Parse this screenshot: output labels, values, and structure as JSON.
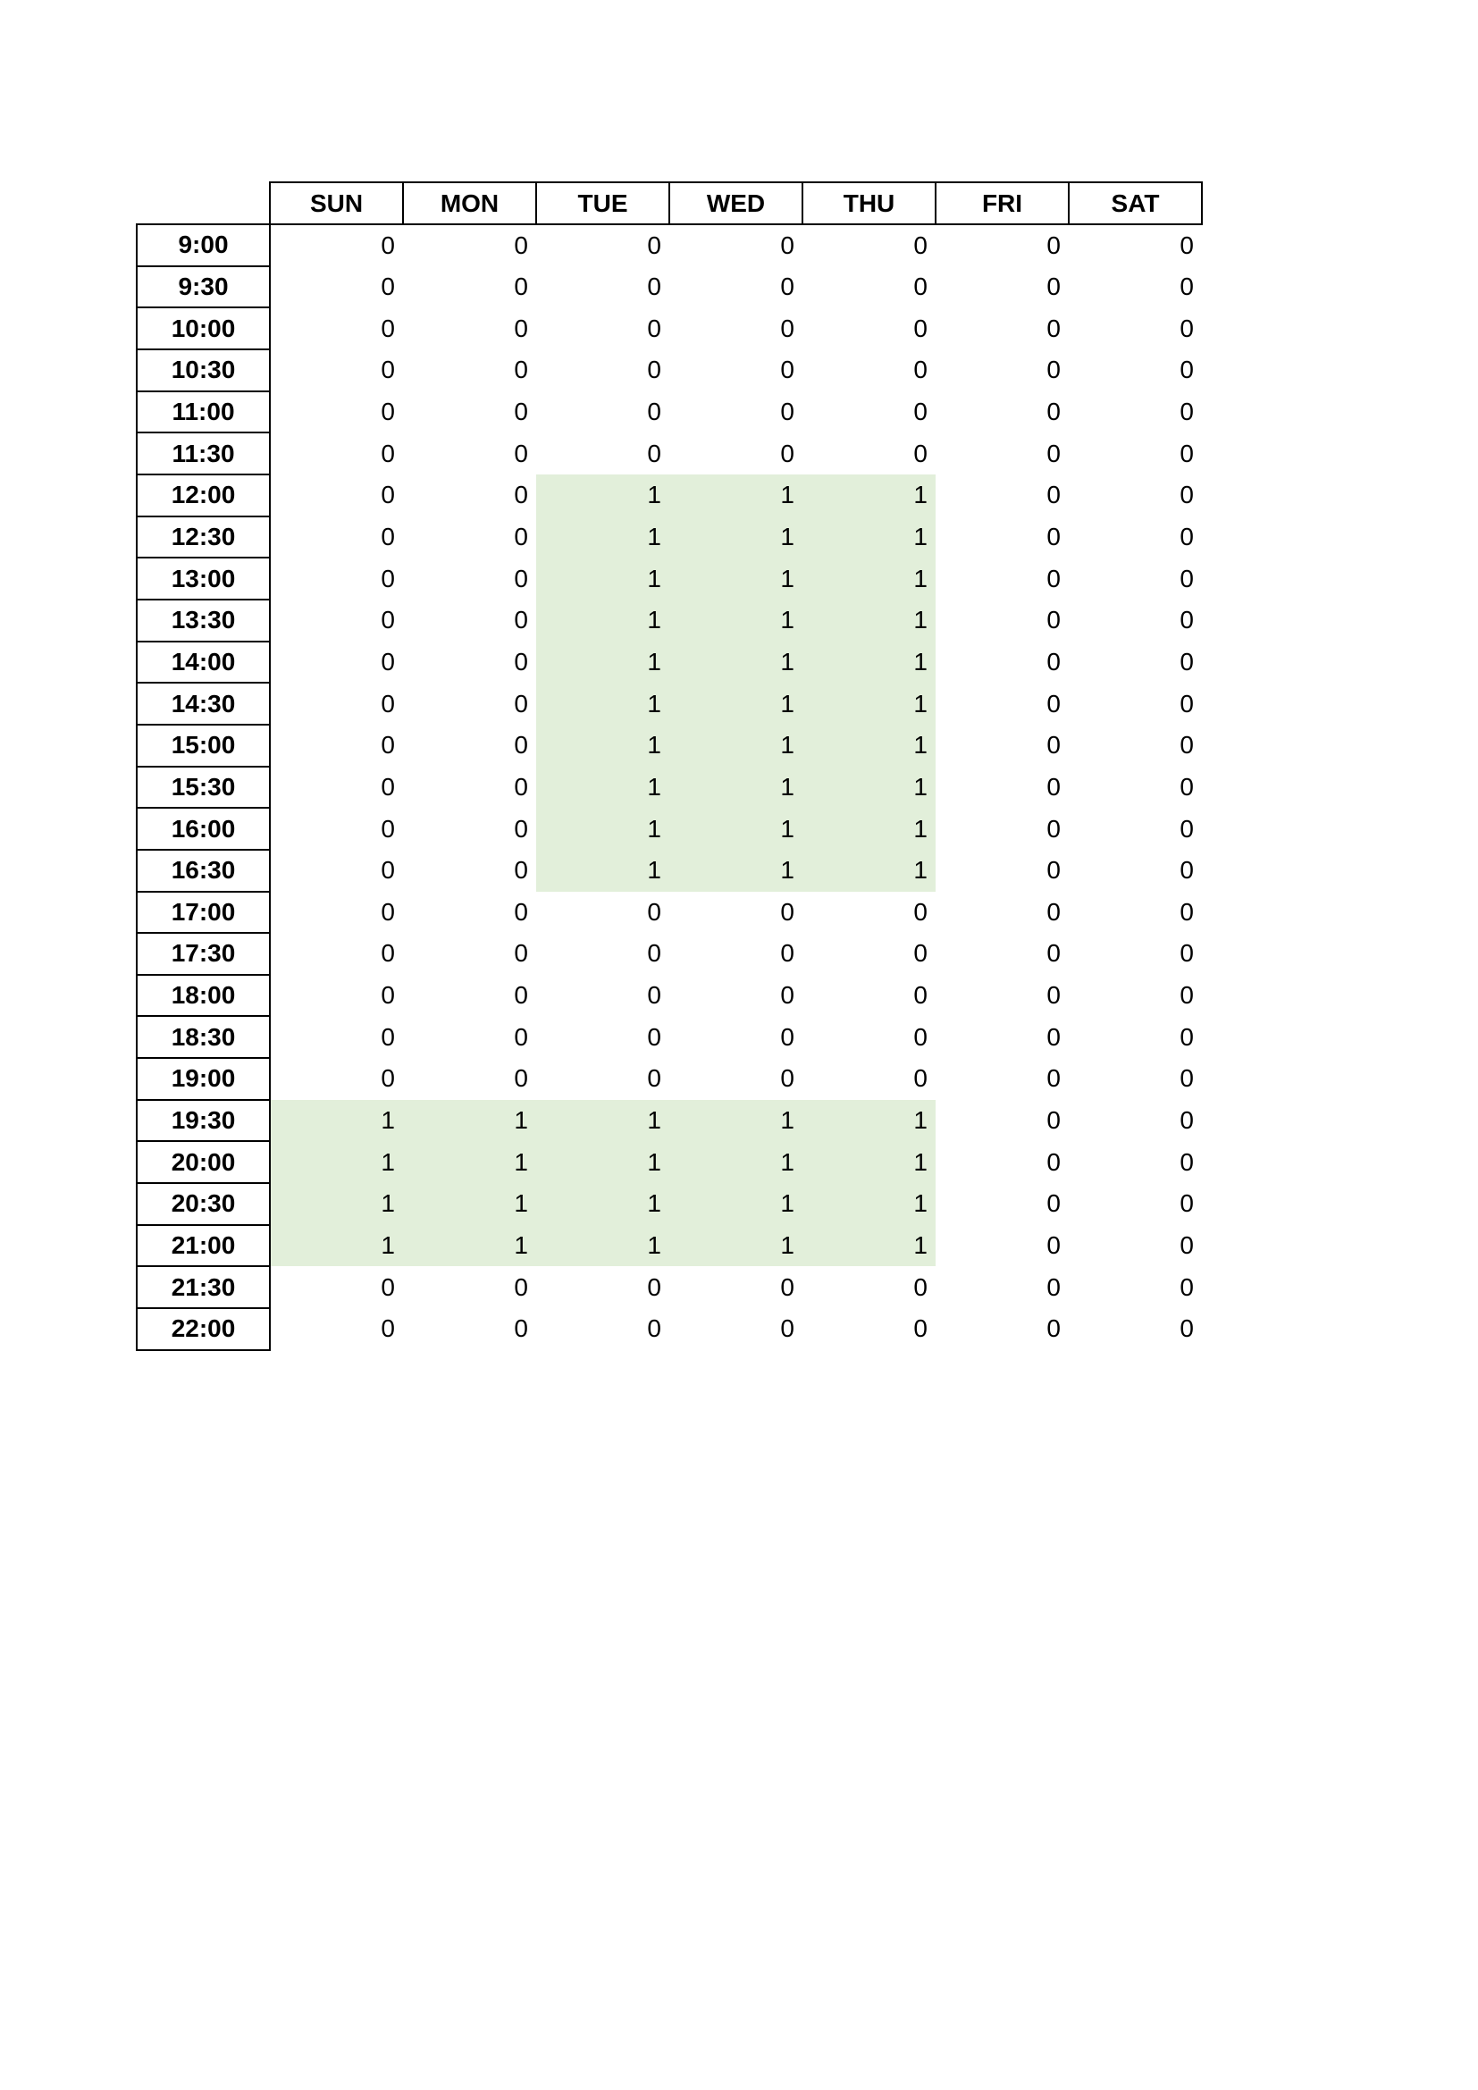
{
  "schedule": {
    "days": [
      "SUN",
      "MON",
      "TUE",
      "WED",
      "THU",
      "FRI",
      "SAT"
    ],
    "highlight_color": "#e2efda",
    "rows": [
      {
        "time": "9:00",
        "values": [
          0,
          0,
          0,
          0,
          0,
          0,
          0
        ]
      },
      {
        "time": "9:30",
        "values": [
          0,
          0,
          0,
          0,
          0,
          0,
          0
        ]
      },
      {
        "time": "10:00",
        "values": [
          0,
          0,
          0,
          0,
          0,
          0,
          0
        ]
      },
      {
        "time": "10:30",
        "values": [
          0,
          0,
          0,
          0,
          0,
          0,
          0
        ]
      },
      {
        "time": "11:00",
        "values": [
          0,
          0,
          0,
          0,
          0,
          0,
          0
        ]
      },
      {
        "time": "11:30",
        "values": [
          0,
          0,
          0,
          0,
          0,
          0,
          0
        ]
      },
      {
        "time": "12:00",
        "values": [
          0,
          0,
          1,
          1,
          1,
          0,
          0
        ]
      },
      {
        "time": "12:30",
        "values": [
          0,
          0,
          1,
          1,
          1,
          0,
          0
        ]
      },
      {
        "time": "13:00",
        "values": [
          0,
          0,
          1,
          1,
          1,
          0,
          0
        ]
      },
      {
        "time": "13:30",
        "values": [
          0,
          0,
          1,
          1,
          1,
          0,
          0
        ]
      },
      {
        "time": "14:00",
        "values": [
          0,
          0,
          1,
          1,
          1,
          0,
          0
        ]
      },
      {
        "time": "14:30",
        "values": [
          0,
          0,
          1,
          1,
          1,
          0,
          0
        ]
      },
      {
        "time": "15:00",
        "values": [
          0,
          0,
          1,
          1,
          1,
          0,
          0
        ]
      },
      {
        "time": "15:30",
        "values": [
          0,
          0,
          1,
          1,
          1,
          0,
          0
        ]
      },
      {
        "time": "16:00",
        "values": [
          0,
          0,
          1,
          1,
          1,
          0,
          0
        ]
      },
      {
        "time": "16:30",
        "values": [
          0,
          0,
          1,
          1,
          1,
          0,
          0
        ]
      },
      {
        "time": "17:00",
        "values": [
          0,
          0,
          0,
          0,
          0,
          0,
          0
        ]
      },
      {
        "time": "17:30",
        "values": [
          0,
          0,
          0,
          0,
          0,
          0,
          0
        ]
      },
      {
        "time": "18:00",
        "values": [
          0,
          0,
          0,
          0,
          0,
          0,
          0
        ]
      },
      {
        "time": "18:30",
        "values": [
          0,
          0,
          0,
          0,
          0,
          0,
          0
        ]
      },
      {
        "time": "19:00",
        "values": [
          0,
          0,
          0,
          0,
          0,
          0,
          0
        ]
      },
      {
        "time": "19:30",
        "values": [
          1,
          1,
          1,
          1,
          1,
          0,
          0
        ]
      },
      {
        "time": "20:00",
        "values": [
          1,
          1,
          1,
          1,
          1,
          0,
          0
        ]
      },
      {
        "time": "20:30",
        "values": [
          1,
          1,
          1,
          1,
          1,
          0,
          0
        ]
      },
      {
        "time": "21:00",
        "values": [
          1,
          1,
          1,
          1,
          1,
          0,
          0
        ]
      },
      {
        "time": "21:30",
        "values": [
          0,
          0,
          0,
          0,
          0,
          0,
          0
        ]
      },
      {
        "time": "22:00",
        "values": [
          0,
          0,
          0,
          0,
          0,
          0,
          0
        ]
      }
    ]
  }
}
